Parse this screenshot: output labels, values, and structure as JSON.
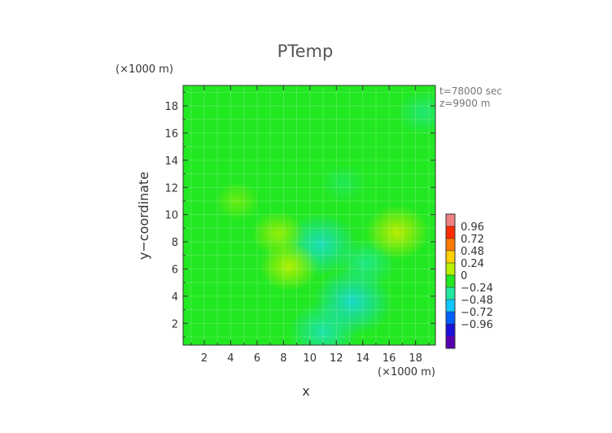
{
  "chart_data": {
    "type": "heatmap",
    "title": "PTemp",
    "xlabel": "x",
    "ylabel": "y−coordinate",
    "x_unit": "(×1000 m)",
    "y_unit": "(×1000 m)",
    "xlim": [
      0.4,
      19.5
    ],
    "ylim": [
      0.4,
      19.5
    ],
    "xticks": [
      2,
      4,
      6,
      8,
      10,
      12,
      14,
      16,
      18
    ],
    "yticks": [
      2,
      4,
      6,
      8,
      10,
      12,
      14,
      16,
      18
    ],
    "grid": true,
    "annotations": [
      "t=78000 sec",
      "z=9900 m"
    ],
    "colorbar": {
      "placement": "right",
      "levels": [
        "0.96",
        "0.72",
        "0.48",
        "0.24",
        "0",
        "−0.24",
        "−0.48",
        "−0.72",
        "−0.96"
      ],
      "colors": [
        "#f08080",
        "#ff2a00",
        "#ff7800",
        "#ffd200",
        "#b8f000",
        "#22e822",
        "#20e8a0",
        "#10c8ff",
        "#0060ff",
        "#1a10d8",
        "#5500b0"
      ]
    },
    "background_value": 0,
    "features": [
      {
        "x": 10.8,
        "y": 7.8,
        "value": -0.16
      },
      {
        "x": 13.2,
        "y": 3.6,
        "value": -0.18
      },
      {
        "x": 11.0,
        "y": 1.4,
        "value": -0.14
      },
      {
        "x": 14.2,
        "y": 6.4,
        "value": -0.1
      },
      {
        "x": 16.6,
        "y": 8.7,
        "value": 0.12
      },
      {
        "x": 8.4,
        "y": 6.2,
        "value": 0.1
      },
      {
        "x": 7.6,
        "y": 8.6,
        "value": 0.08
      },
      {
        "x": 18.6,
        "y": 17.5,
        "value": -0.08
      },
      {
        "x": 4.5,
        "y": 11.0,
        "value": 0.05
      },
      {
        "x": 12.5,
        "y": 12.3,
        "value": -0.05
      }
    ]
  }
}
